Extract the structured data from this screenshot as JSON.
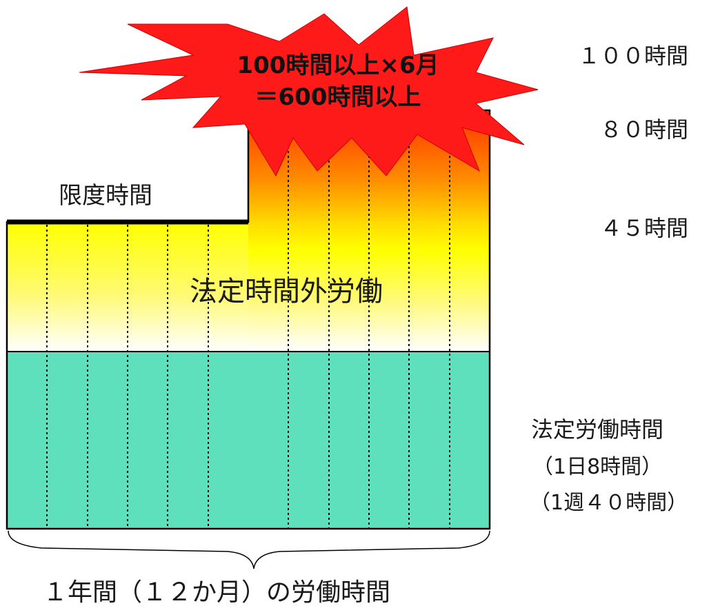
{
  "burst": {
    "line1": "100時間以上×6月",
    "line2": "＝600時間以上"
  },
  "labels": {
    "limit_time": "限度時間",
    "overtime_work": "法定時間外労働",
    "h100": "１００時間",
    "h80": "８０時間",
    "h45": "４５時間",
    "statutory": "法定労働時間",
    "per_day": "（1日8時間）",
    "per_week": "（1週４０時間）",
    "annual": "１年間（１２か月）の労働時間"
  },
  "colors": {
    "statutory_fill": "#5ee0bd",
    "overtime_top": "#ff3a00",
    "overtime_mid": "#ffff00",
    "burst_fill": "#ff1a1a",
    "limit_line": "#000000"
  },
  "months": 12
}
